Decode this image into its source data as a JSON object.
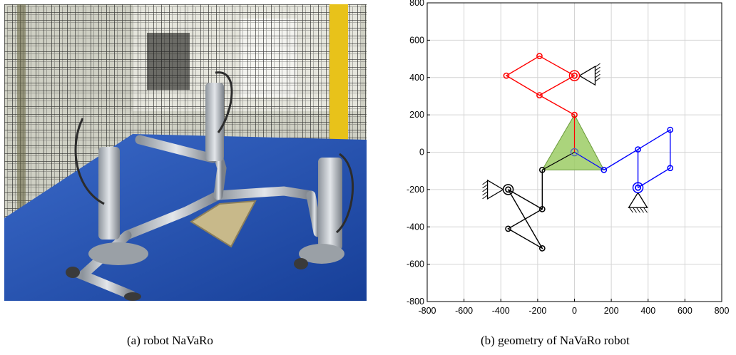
{
  "figure": {
    "caption_a": "(a) robot NaVaRo",
    "caption_b": "(b) geometry of NaVaRo robot",
    "photo": {
      "subject": "NaVaRo parallel robot photograph",
      "colors": {
        "table": "#1f4fb0",
        "cage": "#222222",
        "wall": "#d8d8c8",
        "pillar": "#e8c21a",
        "metal": "#c9cdd2",
        "plate": "#c8b98a"
      }
    }
  },
  "chart_data": {
    "type": "line",
    "xlim": [
      -800,
      800
    ],
    "ylim": [
      -800,
      800
    ],
    "xticks": [
      -800,
      -600,
      -400,
      -200,
      0,
      200,
      400,
      600,
      800
    ],
    "yticks": [
      -800,
      -600,
      -400,
      -200,
      0,
      200,
      400,
      600,
      800
    ],
    "xtick_labels": [
      "-800",
      "-600",
      "-400",
      "-200",
      "0",
      "200",
      "400",
      "600",
      "800"
    ],
    "ytick_labels": [
      "-800",
      "-600",
      "-400",
      "-200",
      "0",
      "200",
      "400",
      "600",
      "800"
    ],
    "grid": true,
    "platform": {
      "color": "#9ccc65",
      "vertices": [
        [
          0,
          200
        ],
        [
          -175,
          -95
        ],
        [
          160,
          -95
        ]
      ],
      "center": [
        0,
        0
      ]
    },
    "series": [
      {
        "color": "#ff0000",
        "points": [
          [
            0,
            200
          ],
          [
            -190,
            305
          ],
          [
            -370,
            410
          ],
          [
            -190,
            515
          ],
          [
            0,
            410
          ]
        ],
        "closing": [
          [
            -190,
            305
          ],
          [
            0,
            410
          ]
        ],
        "base": [
          0,
          410
        ],
        "center_link": [
          [
            0,
            0
          ],
          [
            0,
            200
          ]
        ]
      },
      {
        "color": "#0000ff",
        "points": [
          [
            160,
            -95
          ],
          [
            345,
            15
          ],
          [
            520,
            120
          ],
          [
            520,
            -85
          ],
          [
            345,
            -190
          ]
        ],
        "closing": [
          [
            345,
            15
          ],
          [
            345,
            -190
          ]
        ],
        "base": [
          345,
          -190
        ],
        "center_link": [
          [
            0,
            0
          ],
          [
            160,
            -95
          ]
        ]
      },
      {
        "color": "#000000",
        "points": [
          [
            -175,
            -95
          ],
          [
            -175,
            -305
          ],
          [
            -360,
            -410
          ],
          [
            -175,
            -515
          ],
          [
            -360,
            -200
          ]
        ],
        "closing": [
          [
            -175,
            -305
          ],
          [
            -360,
            -200
          ]
        ],
        "base": [
          -360,
          -200
        ],
        "center_link": [
          [
            0,
            0
          ],
          [
            -175,
            -95
          ]
        ]
      }
    ]
  }
}
